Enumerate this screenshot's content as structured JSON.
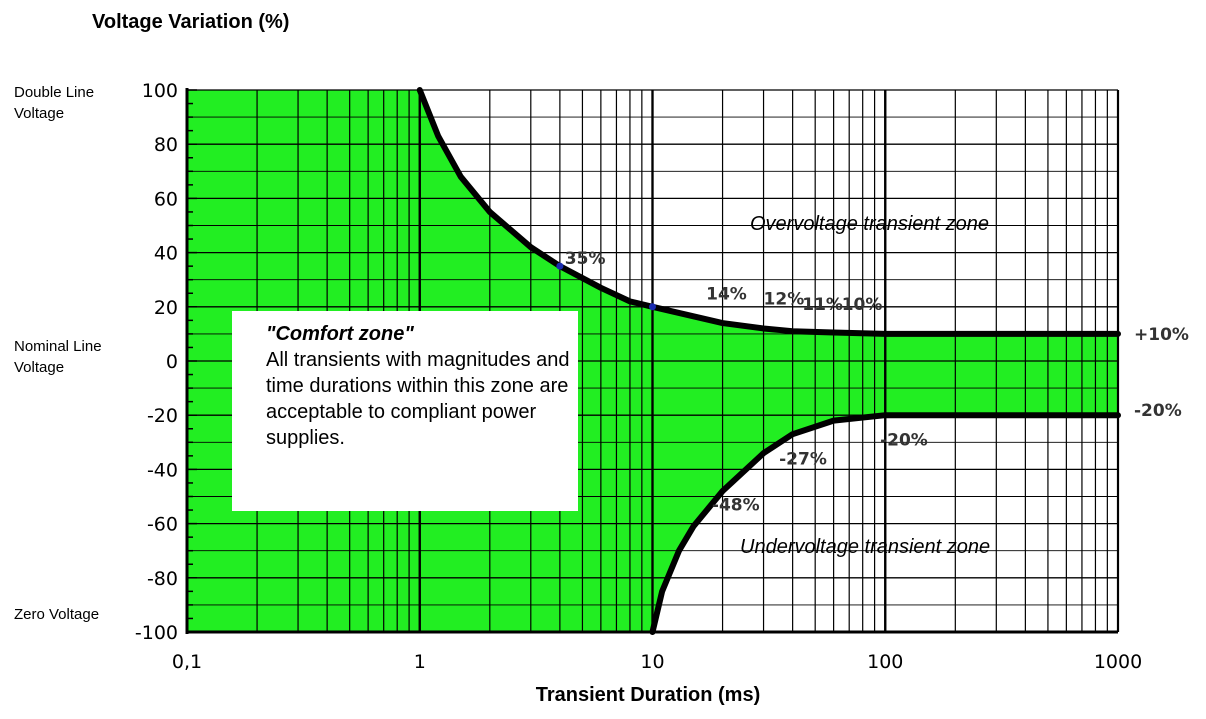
{
  "chart_data": {
    "type": "area",
    "title": "",
    "xlabel": "Transient Duration (ms)",
    "ylabel": "Voltage Variation (%)",
    "x_scale": "log",
    "xlim": [
      0.1,
      1000
    ],
    "ylim": [
      -100,
      100
    ],
    "x_ticks": [
      {
        "value": 0.1,
        "label": "0,1"
      },
      {
        "value": 1,
        "label": "1"
      },
      {
        "value": 10,
        "label": "10"
      },
      {
        "value": 100,
        "label": "100"
      },
      {
        "value": 1000,
        "label": "1000"
      }
    ],
    "y_ticks": [
      {
        "value": 100,
        "label": "100"
      },
      {
        "value": 80,
        "label": "80"
      },
      {
        "value": 60,
        "label": "60"
      },
      {
        "value": 40,
        "label": "40"
      },
      {
        "value": 20,
        "label": "20"
      },
      {
        "value": 0,
        "label": "0"
      },
      {
        "value": -20,
        "label": "-20"
      },
      {
        "value": -40,
        "label": "-40"
      },
      {
        "value": -60,
        "label": "-60"
      },
      {
        "value": -80,
        "label": "-80"
      },
      {
        "value": -100,
        "label": "-100"
      }
    ],
    "grid": true,
    "fill_color": "#22ee22",
    "upper_curve": {
      "x": [
        1,
        1.2,
        1.5,
        2,
        3,
        4,
        6,
        8,
        10,
        20,
        30,
        40,
        60,
        100,
        1000
      ],
      "y": [
        100,
        83,
        68,
        55,
        42,
        35,
        27,
        22,
        20,
        14,
        12,
        11,
        10.5,
        10,
        10
      ]
    },
    "lower_curve": {
      "x": [
        10,
        11,
        13,
        15,
        20,
        30,
        40,
        60,
        100,
        1000
      ],
      "y": [
        -100,
        -85,
        -70,
        -61,
        -48,
        -34,
        -27,
        -22,
        -20,
        -20
      ]
    },
    "markers": [
      {
        "x": 4,
        "y": 35
      },
      {
        "x": 10,
        "y": 20
      }
    ],
    "annotations": [
      {
        "text": "35%",
        "x": 4.2,
        "y": 38
      },
      {
        "text": "14%",
        "x": 17,
        "y": 25
      },
      {
        "text": "12%",
        "x": 30,
        "y": 23
      },
      {
        "text": "11%",
        "x": 44,
        "y": 21
      },
      {
        "text": "10%",
        "x": 65,
        "y": 21
      },
      {
        "text": "+10%",
        "x": 1000,
        "y": 10,
        "side": "right"
      },
      {
        "text": "-20%",
        "x": 1000,
        "y": -18,
        "side": "right"
      },
      {
        "text": "-20%",
        "x": 95,
        "y": -29
      },
      {
        "text": "-27%",
        "x": 35,
        "y": -36
      },
      {
        "text": "-48%",
        "x": 18,
        "y": -53
      }
    ]
  },
  "side_labels": {
    "top": "Double Line Voltage",
    "middle": "Nominal Line Voltage",
    "bottom": "Zero Voltage"
  },
  "comfort_zone": {
    "title": "\"Comfort zone\"",
    "body": "All transients with magnitudes and time durations within this zone are acceptable to compliant power supplies."
  },
  "zones": {
    "over": "Overvoltage transient zone",
    "under": "Undervoltage transient zone"
  }
}
